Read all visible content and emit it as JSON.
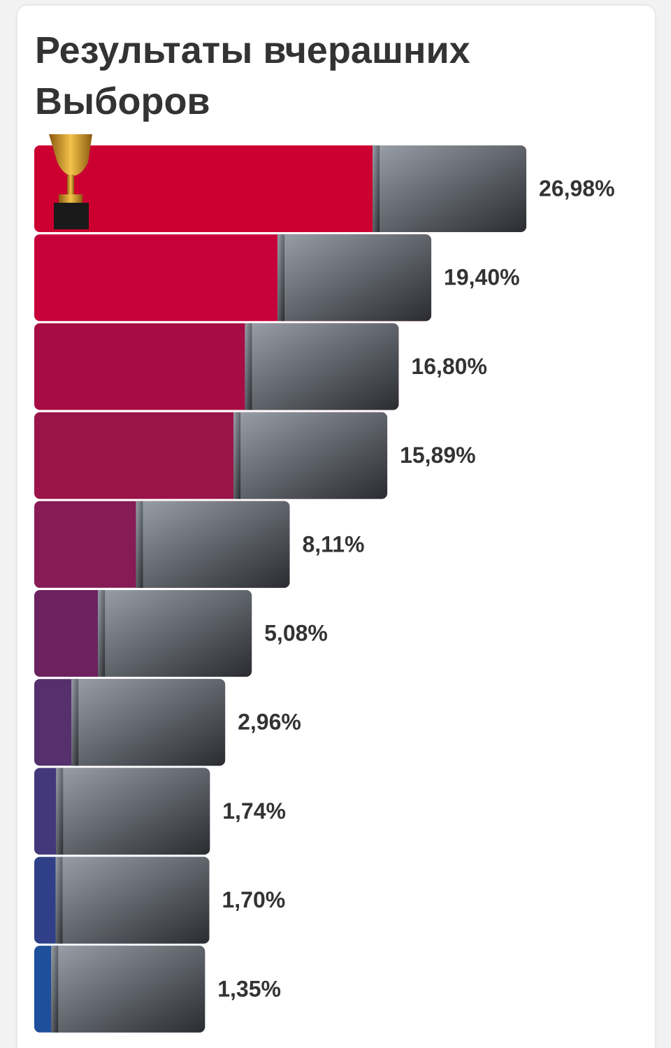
{
  "chart_data": {
    "type": "bar",
    "orientation": "horizontal",
    "title": "Результаты вчерашних Выборов",
    "values": [
      26.98,
      19.4,
      16.8,
      15.89,
      8.11,
      5.08,
      2.96,
      1.74,
      1.7,
      1.35
    ],
    "value_labels": [
      "26,98%",
      "19,40%",
      "16,80%",
      "15,89%",
      "8,11%",
      "5,08%",
      "2,96%",
      "1,74%",
      "1,70%",
      "1,35%"
    ],
    "colors": [
      "#cc0030",
      "#c6013a",
      "#a70d44",
      "#9a1449",
      "#861b55",
      "#6c225f",
      "#55306d",
      "#43397a",
      "#2f4088",
      "#1d4f9a"
    ]
  }
}
